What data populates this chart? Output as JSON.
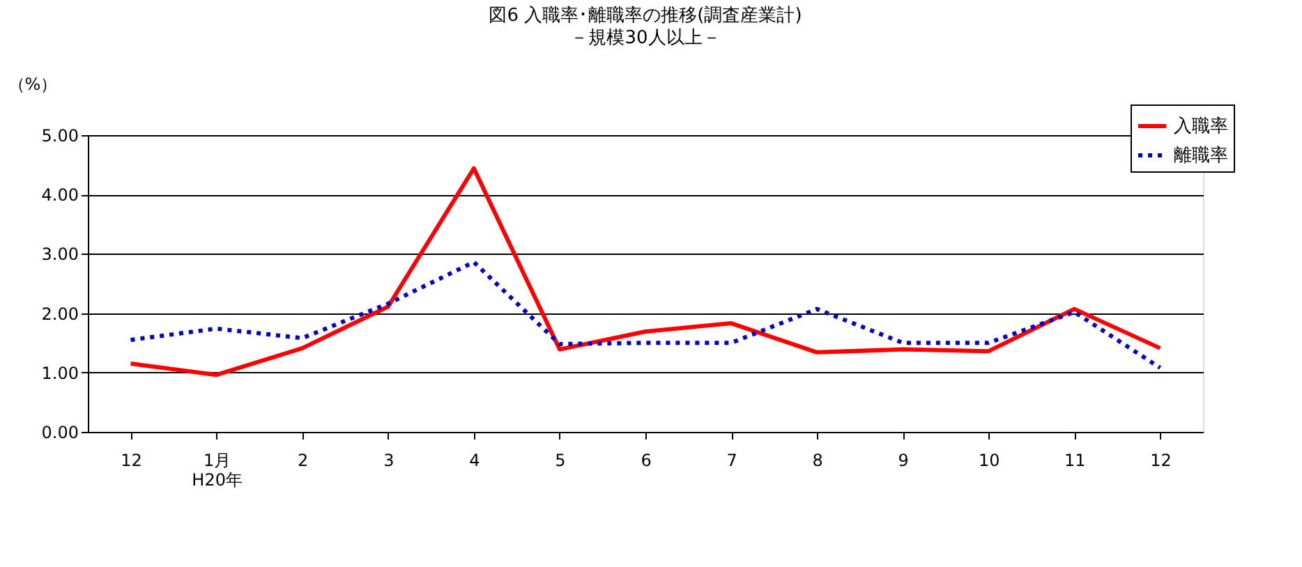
{
  "chart_data": {
    "type": "line",
    "title": "図6  入職率･離職率の推移(調査産業計)",
    "subtitle": "－規模30人以上－",
    "ylabel": "（%）",
    "categories": [
      "12",
      "1月\nH20年",
      "2",
      "3",
      "4",
      "5",
      "6",
      "7",
      "8",
      "9",
      "10",
      "11",
      "12"
    ],
    "series": [
      {
        "name": "入職率",
        "color": "#ff0000",
        "line_style": "solid",
        "values": [
          1.15,
          0.96,
          1.41,
          2.11,
          4.44,
          1.39,
          1.69,
          1.83,
          1.34,
          1.39,
          1.36,
          2.07,
          1.41
        ]
      },
      {
        "name": "離職率",
        "color": "#0000cc",
        "line_style": "dotted",
        "values": [
          1.55,
          1.74,
          1.58,
          2.16,
          2.86,
          1.48,
          1.5,
          1.5,
          2.07,
          1.5,
          1.5,
          2.02,
          1.08
        ]
      }
    ],
    "ylim": [
      0,
      5
    ],
    "yticks": [
      {
        "value": 0,
        "label": "0.00"
      },
      {
        "value": 1,
        "label": "1.00"
      },
      {
        "value": 2,
        "label": "2.00"
      },
      {
        "value": 3,
        "label": "3.00"
      },
      {
        "value": 4,
        "label": "4.00"
      },
      {
        "value": 5,
        "label": "5.00"
      }
    ],
    "grid": "y",
    "legend": "top right",
    "marker": "none"
  }
}
